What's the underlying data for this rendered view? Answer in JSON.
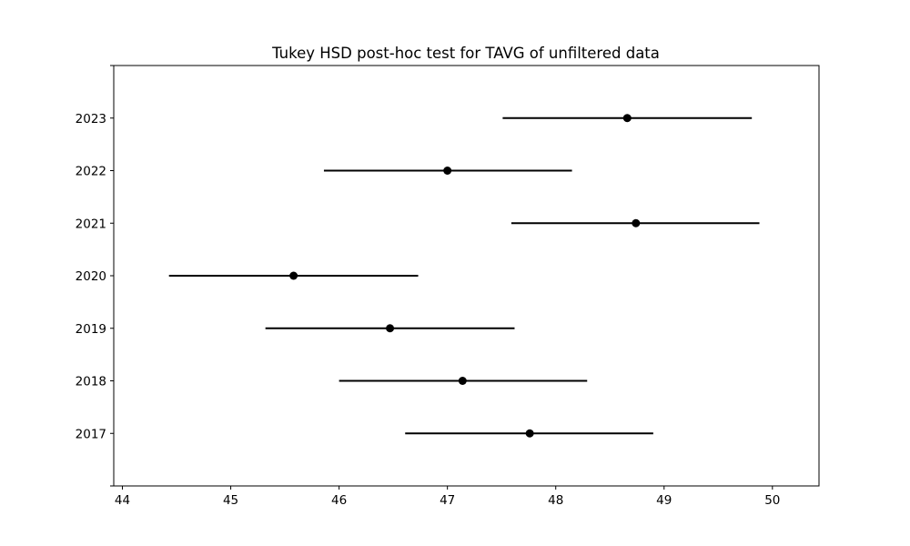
{
  "chart_data": {
    "type": "errorbar",
    "title": "Tukey HSD post-hoc test for TAVG of unfiltered data",
    "xlabel": "",
    "ylabel": "",
    "xlim": [
      43.92,
      50.43
    ],
    "x_ticks": [
      44,
      45,
      46,
      47,
      48,
      49,
      50
    ],
    "categories": [
      "2017",
      "2018",
      "2019",
      "2020",
      "2021",
      "2022",
      "2023"
    ],
    "means": [
      47.76,
      47.14,
      46.47,
      45.58,
      48.74,
      47.0,
      48.66
    ],
    "lower": [
      46.61,
      46.0,
      45.32,
      44.43,
      47.59,
      45.86,
      47.51
    ],
    "upper": [
      48.9,
      48.29,
      47.62,
      46.73,
      49.88,
      48.15,
      49.81
    ],
    "grid": false,
    "colors": {
      "marks": "#000000",
      "frame": "#000000",
      "background": "#ffffff"
    }
  }
}
